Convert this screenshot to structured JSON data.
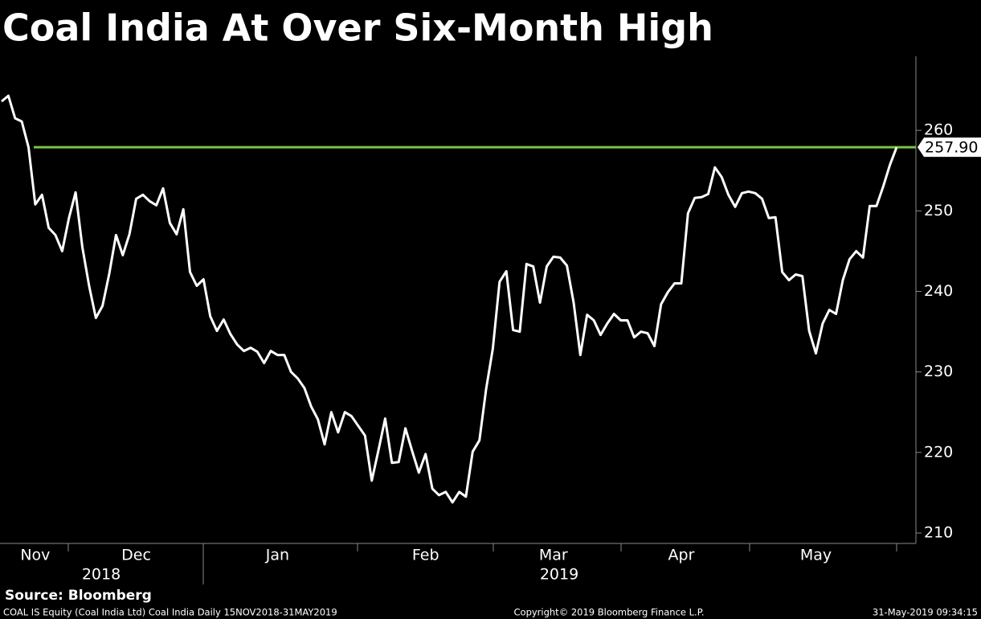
{
  "chart_data": {
    "type": "line",
    "title": "Coal India At Over Six-Month High",
    "categories": [
      null,
      null,
      null,
      null,
      null,
      "Nov",
      null,
      null,
      null,
      null,
      null,
      null,
      null,
      null,
      null,
      null,
      null,
      null,
      null,
      null,
      "Dec",
      null,
      null,
      null,
      null,
      null,
      null,
      null,
      null,
      null,
      null,
      null,
      null,
      null,
      null,
      null,
      null,
      null,
      null,
      null,
      null,
      "Jan",
      null,
      null,
      null,
      null,
      null,
      null,
      null,
      null,
      null,
      null,
      null,
      null,
      null,
      null,
      null,
      null,
      null,
      null,
      null,
      null,
      null,
      "Feb",
      null,
      null,
      null,
      null,
      null,
      null,
      null,
      null,
      null,
      null,
      null,
      null,
      null,
      null,
      null,
      null,
      null,
      null,
      "Mar",
      null,
      null,
      null,
      null,
      null,
      null,
      null,
      null,
      null,
      null,
      null,
      null,
      null,
      null,
      null,
      null,
      null,
      null,
      "Apr",
      null,
      null,
      null,
      null,
      null,
      null,
      null,
      null,
      null,
      null,
      null,
      null,
      null,
      null,
      null,
      null,
      null,
      null,
      null,
      "May",
      null,
      null,
      null,
      null,
      null,
      null,
      null,
      null,
      null,
      null,
      null,
      null
    ],
    "year_labels": [
      "2018",
      "2019"
    ],
    "series": [
      {
        "name": "COAL IS Equity",
        "color": "#ffffff",
        "values": [
          263.6,
          264.3,
          261.5,
          261.1,
          257.9,
          250.8,
          252.0,
          247.9,
          247.0,
          245.0,
          249.1,
          252.3,
          245.5,
          240.7,
          236.7,
          238.2,
          242.2,
          247.0,
          244.5,
          247.1,
          251.5,
          252.0,
          251.2,
          250.7,
          252.8,
          248.5,
          247.1,
          250.2,
          242.4,
          240.7,
          241.5,
          236.9,
          235.1,
          236.5,
          234.7,
          233.4,
          232.6,
          233.0,
          232.5,
          231.1,
          232.6,
          232.1,
          232.1,
          230.0,
          229.2,
          228.0,
          225.7,
          224.1,
          221.0,
          225.0,
          222.5,
          225.0,
          224.5,
          223.3,
          222.1,
          216.5,
          220.3,
          224.2,
          218.7,
          218.8,
          223.0,
          220.2,
          217.5,
          219.8,
          215.5,
          214.7,
          215.1,
          213.8,
          215.1,
          214.5,
          220.1,
          221.5,
          227.9,
          232.9,
          241.2,
          242.5,
          235.2,
          235.0,
          243.4,
          243.1,
          238.6,
          243.1,
          244.3,
          244.2,
          243.2,
          238.6,
          232.1,
          237.1,
          236.4,
          234.6,
          236.0,
          237.2,
          236.4,
          236.4,
          234.3,
          235.0,
          234.8,
          233.2,
          238.4,
          239.9,
          241.0,
          241.0,
          249.7,
          251.6,
          251.7,
          252.1,
          255.4,
          254.2,
          252.0,
          250.5,
          252.2,
          252.4,
          252.2,
          251.5,
          249.1,
          249.2,
          242.4,
          241.4,
          242.1,
          241.9,
          235.1,
          232.3,
          236.0,
          237.7,
          237.2,
          241.4,
          244.0,
          245.0,
          244.2,
          250.6,
          250.6,
          253.0,
          255.7,
          257.9
        ]
      }
    ],
    "reference_line": {
      "value": 257.9,
      "label": "257.90",
      "color": "#7dc242"
    },
    "ylim": [
      208.7,
      269.2
    ],
    "yticks": [
      210,
      220,
      230,
      240,
      250,
      260
    ],
    "y_axis_side": "right",
    "source": "Source: Bloomberg",
    "footnote": "COAL IS Equity (Coal India Ltd) Coal India  Daily 15NOV2018-31MAY2019",
    "copyright": "Copyright© 2019 Bloomberg Finance L.P.",
    "timestamp": "31-May-2019 09:34:15"
  }
}
